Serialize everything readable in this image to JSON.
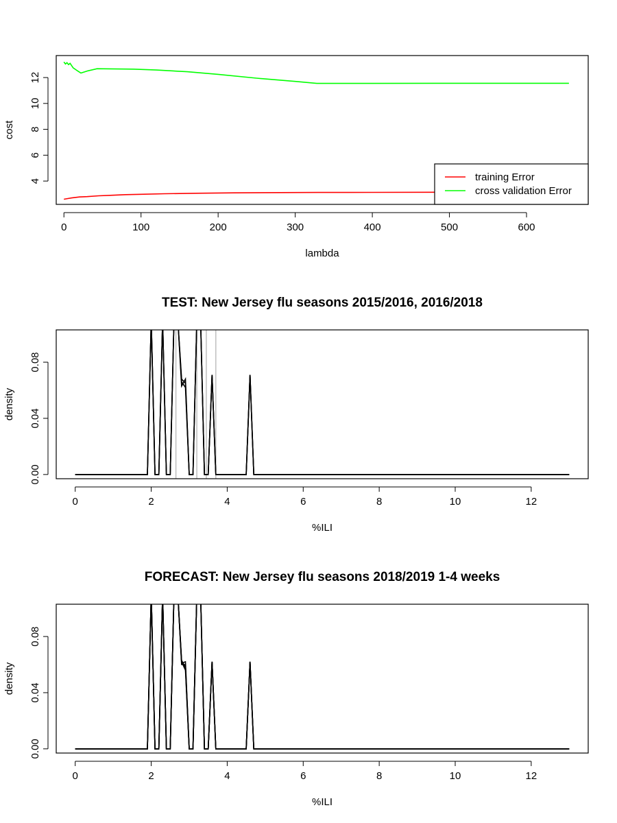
{
  "chart_data": [
    {
      "type": "line",
      "title": "",
      "xlabel": "lambda",
      "ylabel": "cost",
      "xlim": [
        -10,
        680
      ],
      "ylim": [
        2.2,
        13.7
      ],
      "xticks": [
        0,
        100,
        200,
        300,
        400,
        500,
        600
      ],
      "yticks": [
        4,
        6,
        8,
        10,
        12
      ],
      "grid": false,
      "legend_position": "bottom-right",
      "series": [
        {
          "name": "training Error",
          "color": "#ff0000",
          "x": [
            0,
            5,
            10,
            20,
            30,
            45,
            60,
            80,
            100,
            130,
            170,
            220,
            280,
            330,
            400,
            500,
            600,
            655
          ],
          "y": [
            2.6,
            2.65,
            2.7,
            2.77,
            2.8,
            2.86,
            2.9,
            2.95,
            2.98,
            3.02,
            3.06,
            3.09,
            3.11,
            3.12,
            3.13,
            3.14,
            3.15,
            3.15
          ]
        },
        {
          "name": "cross validation Error",
          "color": "#00ff00",
          "x": [
            0,
            2,
            4,
            6,
            8,
            12,
            18,
            22,
            30,
            43,
            60,
            90,
            120,
            160,
            200,
            250,
            300,
            328,
            400,
            500,
            600,
            655
          ],
          "y": [
            13.2,
            13.05,
            13.15,
            13.0,
            13.1,
            12.75,
            12.5,
            12.35,
            12.5,
            12.68,
            12.67,
            12.65,
            12.58,
            12.45,
            12.25,
            11.95,
            11.7,
            11.55,
            11.55,
            11.56,
            11.56,
            11.56
          ]
        }
      ]
    },
    {
      "type": "line",
      "title": "TEST: New Jersey  flu seasons 2015/2016, 2016/2018",
      "xlabel": "%ILI",
      "ylabel": "density",
      "xlim": [
        -0.5,
        13.5
      ],
      "ylim": [
        -0.003,
        0.103
      ],
      "xticks": [
        0,
        2,
        4,
        6,
        8,
        10,
        12
      ],
      "yticks": [
        0.0,
        0.04,
        0.08
      ],
      "ytick_labels": [
        "0.00",
        "0.04",
        "0.08"
      ],
      "grid": false,
      "vertical_lines": {
        "color": "#bebebe",
        "x": [
          2.65,
          3.2,
          3.45,
          3.7
        ]
      },
      "series_color": "#000000",
      "series": [
        {
          "x": [
            0,
            1.9,
            2.0,
            2.1,
            2.2,
            2.3,
            2.4,
            2.5,
            2.6,
            2.7,
            2.8,
            2.9,
            3.0,
            3.1,
            3.2,
            3.3,
            3.4,
            3.5,
            3.6,
            3.7,
            4.5,
            4.6,
            4.7,
            13
          ],
          "y": [
            0,
            0,
            0.11,
            0,
            0,
            0.11,
            0,
            0,
            0.11,
            0.11,
            0.063,
            0.068,
            0,
            0,
            0.11,
            0.11,
            0,
            0,
            0.071,
            0,
            0,
            0.071,
            0,
            0
          ]
        },
        {
          "x": [
            0,
            1.9,
            2.0,
            2.1,
            2.2,
            2.3,
            2.4,
            2.5,
            2.6,
            2.7,
            2.8,
            2.9,
            3.0,
            3.1,
            3.2,
            3.3,
            3.4,
            3.5,
            3.6,
            3.7,
            4.5,
            4.6,
            4.7,
            13
          ],
          "y": [
            0,
            0,
            0.11,
            0,
            0,
            0.11,
            0,
            0,
            0.11,
            0.11,
            0.066,
            0.062,
            0,
            0,
            0.11,
            0.11,
            0,
            0,
            0.071,
            0,
            0,
            0.071,
            0,
            0
          ]
        },
        {
          "x": [
            0,
            1.9,
            2.0,
            2.1,
            2.2,
            2.3,
            2.4,
            2.5,
            2.6,
            2.7,
            2.8,
            2.9,
            3.0,
            3.1,
            3.2,
            3.3,
            3.4,
            3.5,
            3.6,
            3.7,
            4.5,
            4.6,
            4.7,
            13
          ],
          "y": [
            0,
            0,
            0.11,
            0,
            0,
            0.11,
            0,
            0,
            0.11,
            0.11,
            0.068,
            0.065,
            0,
            0,
            0.11,
            0.11,
            0,
            0,
            0.071,
            0,
            0,
            0.071,
            0,
            0
          ]
        }
      ]
    },
    {
      "type": "line",
      "title": "FORECAST: New Jersey flu seasons 2018/2019 1-4 weeks",
      "xlabel": "%ILI",
      "ylabel": "density",
      "xlim": [
        -0.5,
        13.5
      ],
      "ylim": [
        -0.003,
        0.103
      ],
      "xticks": [
        0,
        2,
        4,
        6,
        8,
        10,
        12
      ],
      "yticks": [
        0.0,
        0.04,
        0.08
      ],
      "ytick_labels": [
        "0.00",
        "0.04",
        "0.08"
      ],
      "grid": false,
      "series_color": "#000000",
      "series": [
        {
          "x": [
            0,
            1.9,
            2.0,
            2.1,
            2.2,
            2.3,
            2.4,
            2.5,
            2.6,
            2.7,
            2.8,
            2.9,
            3.0,
            3.1,
            3.2,
            3.3,
            3.4,
            3.5,
            3.6,
            3.7,
            4.5,
            4.6,
            4.7,
            13
          ],
          "y": [
            0,
            0,
            0.11,
            0,
            0,
            0.11,
            0,
            0,
            0.11,
            0.11,
            0.062,
            0.056,
            0,
            0,
            0.11,
            0.11,
            0,
            0,
            0.062,
            0,
            0,
            0.062,
            0,
            0
          ]
        },
        {
          "x": [
            0,
            1.9,
            2.0,
            2.1,
            2.2,
            2.3,
            2.4,
            2.5,
            2.6,
            2.7,
            2.8,
            2.9,
            3.0,
            3.1,
            3.2,
            3.3,
            3.4,
            3.5,
            3.6,
            3.7,
            4.5,
            4.6,
            4.7,
            13
          ],
          "y": [
            0,
            0,
            0.11,
            0,
            0,
            0.11,
            0,
            0,
            0.11,
            0.11,
            0.06,
            0.06,
            0,
            0,
            0.11,
            0.11,
            0,
            0,
            0.062,
            0,
            0,
            0.062,
            0,
            0
          ]
        },
        {
          "x": [
            0,
            1.9,
            2.0,
            2.1,
            2.2,
            2.3,
            2.4,
            2.5,
            2.6,
            2.7,
            2.8,
            2.9,
            3.0,
            3.1,
            3.2,
            3.3,
            3.4,
            3.5,
            3.6,
            3.7,
            4.5,
            4.6,
            4.7,
            13
          ],
          "y": [
            0,
            0,
            0.11,
            0,
            0,
            0.11,
            0,
            0,
            0.11,
            0.11,
            0.063,
            0.058,
            0,
            0,
            0.11,
            0.11,
            0,
            0,
            0.062,
            0,
            0,
            0.062,
            0,
            0
          ]
        },
        {
          "x": [
            0,
            1.9,
            2.0,
            2.1,
            2.2,
            2.3,
            2.4,
            2.5,
            2.6,
            2.7,
            2.8,
            2.9,
            3.0,
            3.1,
            3.2,
            3.3,
            3.4,
            3.5,
            3.6,
            3.7,
            4.5,
            4.6,
            4.7,
            13
          ],
          "y": [
            0,
            0,
            0.11,
            0,
            0,
            0.11,
            0,
            0,
            0.11,
            0.11,
            0.061,
            0.062,
            0,
            0,
            0.11,
            0.11,
            0,
            0,
            0.062,
            0,
            0,
            0.062,
            0,
            0
          ]
        }
      ]
    }
  ]
}
